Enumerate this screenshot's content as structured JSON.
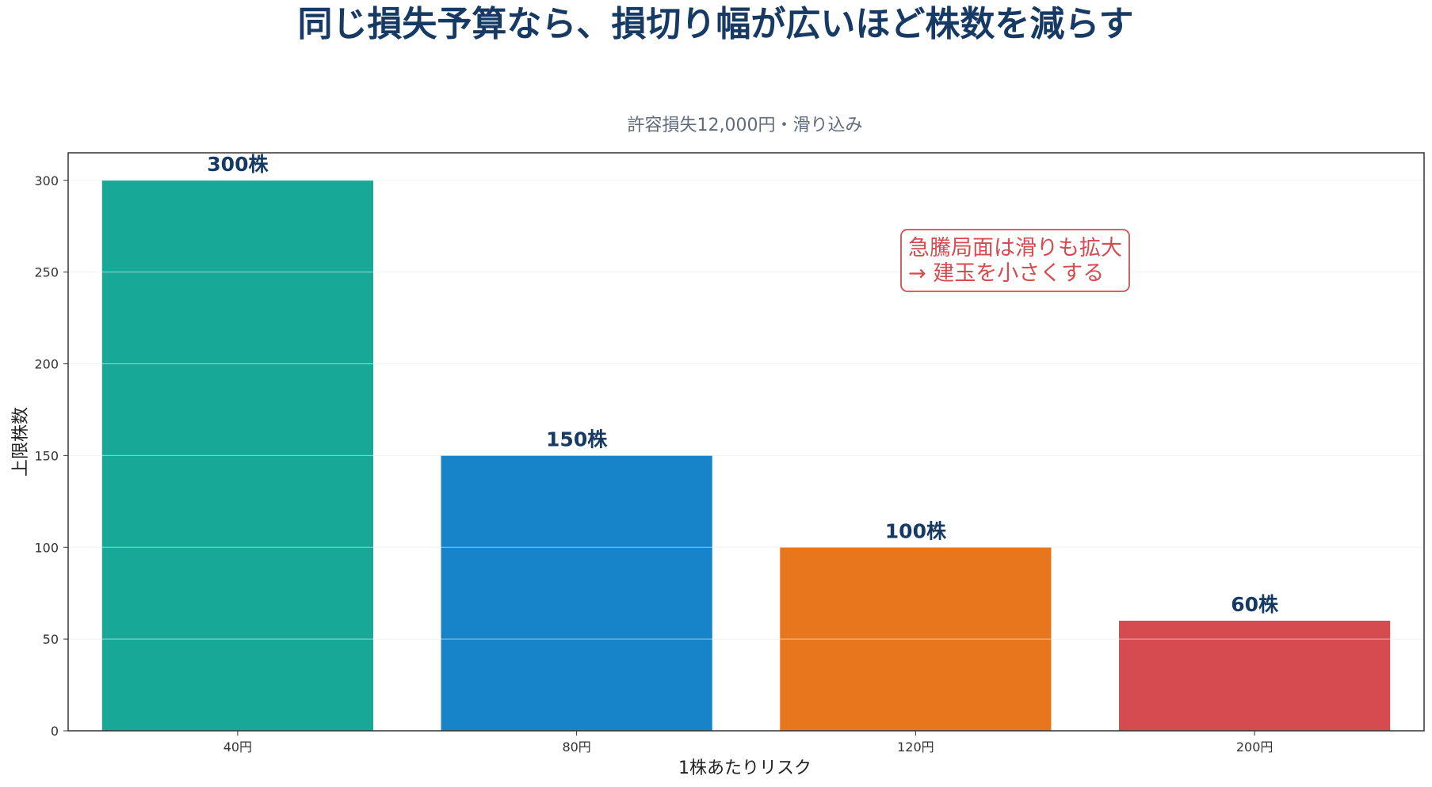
{
  "chart_data": {
    "type": "bar",
    "title": "同じ損失予算なら、損切り幅が広いほど株数を減らす",
    "subtitle": "許容損失12,000円・滑り込み",
    "xlabel": "1株あたりリスク",
    "ylabel": "上限株数",
    "categories": [
      "40円",
      "80円",
      "120円",
      "200円"
    ],
    "values": [
      300,
      150,
      100,
      60
    ],
    "data_labels": [
      "300株",
      "150株",
      "100株",
      "60株"
    ],
    "bar_colors": [
      "#17a898",
      "#1783c8",
      "#e8761c",
      "#d64b4f"
    ],
    "ylim": [
      0,
      315
    ],
    "yticks": [
      0,
      50,
      100,
      150,
      200,
      250,
      300
    ],
    "grid": "horizontal",
    "legend": "none",
    "annotation": {
      "lines": [
        "急騰局面は滑りも拡大",
        "→ 建玉を小さくする"
      ],
      "color": "#d64b4f",
      "placement": "upper-right"
    },
    "colors": {
      "title": "#163a63",
      "subtitle": "#5f6b7a",
      "data_label": "#163a63",
      "grid": "#e4e4e4",
      "axis": "#333333"
    }
  }
}
